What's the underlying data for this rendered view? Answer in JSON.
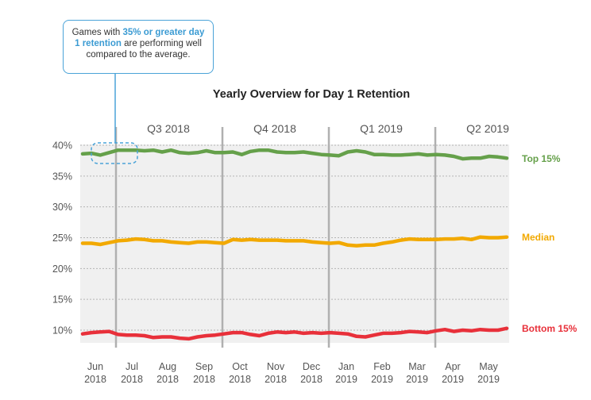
{
  "callout": {
    "before": "Games with ",
    "highlight": "35% or greater day 1 retention",
    "after": " are performing well compared to the average."
  },
  "chart_data": {
    "type": "line",
    "title": "Yearly Overview for Day 1 Retention",
    "xlabel": "",
    "ylabel": "",
    "ylim": [
      8,
      41
    ],
    "yticks": [
      10,
      15,
      20,
      25,
      30,
      35,
      40
    ],
    "ytick_labels": [
      "10%",
      "15%",
      "20%",
      "25%",
      "30%",
      "35%",
      "40%"
    ],
    "grid": true,
    "quarters": [
      "Q3 2018",
      "Q4 2018",
      "Q1 2019",
      "Q2 2019"
    ],
    "month_labels": [
      [
        "Jun",
        "2018"
      ],
      [
        "Jul",
        "2018"
      ],
      [
        "Aug",
        "2018"
      ],
      [
        "Sep",
        "2018"
      ],
      [
        "Oct",
        "2018"
      ],
      [
        "Nov",
        "2018"
      ],
      [
        "Dec",
        "2018"
      ],
      [
        "Jan",
        "2019"
      ],
      [
        "Feb",
        "2019"
      ],
      [
        "Mar",
        "2019"
      ],
      [
        "Apr",
        "2019"
      ],
      [
        "May",
        "2019"
      ]
    ],
    "x_weeks": 49,
    "series": [
      {
        "name": "Top 15%",
        "color": "#65a04a",
        "values": [
          38.6,
          38.7,
          38.4,
          38.8,
          39.2,
          39.2,
          39.2,
          39.1,
          39.2,
          38.9,
          39.2,
          38.8,
          38.7,
          38.8,
          39.1,
          38.8,
          38.8,
          38.9,
          38.5,
          39.0,
          39.2,
          39.2,
          38.9,
          38.8,
          38.8,
          38.9,
          38.7,
          38.5,
          38.4,
          38.3,
          38.9,
          39.1,
          38.9,
          38.5,
          38.5,
          38.4,
          38.4,
          38.5,
          38.6,
          38.4,
          38.5,
          38.4,
          38.2,
          37.8,
          37.9,
          37.9,
          38.2,
          38.1,
          37.9
        ]
      },
      {
        "name": "Median",
        "color": "#f2a900",
        "values": [
          24.1,
          24.1,
          23.9,
          24.2,
          24.5,
          24.6,
          24.8,
          24.7,
          24.5,
          24.5,
          24.3,
          24.2,
          24.1,
          24.3,
          24.3,
          24.2,
          24.1,
          24.7,
          24.6,
          24.7,
          24.6,
          24.6,
          24.6,
          24.5,
          24.5,
          24.5,
          24.3,
          24.2,
          24.1,
          24.2,
          23.8,
          23.7,
          23.8,
          23.8,
          24.1,
          24.3,
          24.6,
          24.8,
          24.7,
          24.7,
          24.7,
          24.8,
          24.8,
          24.9,
          24.7,
          25.1,
          25.0,
          25.0,
          25.1
        ]
      },
      {
        "name": "Bottom 15%",
        "color": "#e8303a",
        "values": [
          9.4,
          9.6,
          9.7,
          9.8,
          9.3,
          9.2,
          9.2,
          9.1,
          8.8,
          8.9,
          8.9,
          8.7,
          8.6,
          8.9,
          9.1,
          9.2,
          9.4,
          9.6,
          9.6,
          9.3,
          9.1,
          9.5,
          9.7,
          9.6,
          9.7,
          9.5,
          9.6,
          9.5,
          9.6,
          9.5,
          9.4,
          9.0,
          8.9,
          9.2,
          9.5,
          9.5,
          9.6,
          9.8,
          9.7,
          9.6,
          9.9,
          10.1,
          9.8,
          10.0,
          9.9,
          10.1,
          10.0,
          10.0,
          10.3
        ]
      }
    ]
  }
}
